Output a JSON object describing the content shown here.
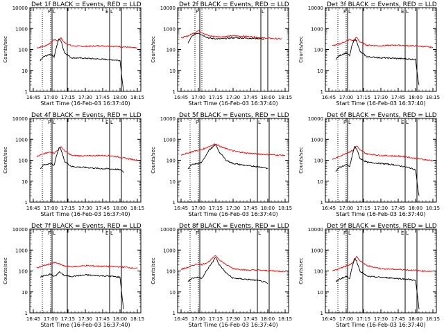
{
  "chart_data": [
    {
      "type": "line",
      "title": "Det 1f BLACK = Events, RED = LLD",
      "xlabel": "Start Time (16-Feb-03 16:37:40)",
      "ylabel": "Counts/sec",
      "yscale": "log",
      "ylim": [
        1,
        10000
      ],
      "xlim": [
        16.7,
        18.3
      ],
      "x_ticks": [
        "16:45",
        "17:00",
        "17:15",
        "17:30",
        "17:45",
        "18:00",
        "18:15"
      ],
      "y_ticks": [
        "1",
        "10",
        "100",
        "1000",
        "10000"
      ],
      "markers": {
        "dotted": [
          16.88,
          17.0
        ],
        "solid": [
          17.02,
          17.24,
          17.85,
          18.02
        ],
        "labels": [
          "F",
          "L",
          "E",
          "L"
        ]
      },
      "series": [
        {
          "color": "#ff0000",
          "x": [
            16.8,
            16.9,
            17.0,
            17.05,
            17.1,
            17.15,
            17.2,
            17.3,
            17.5,
            17.7,
            17.85,
            17.95,
            18.1,
            18.25
          ],
          "y": [
            120,
            140,
            200,
            300,
            260,
            350,
            210,
            150,
            140,
            150,
            145,
            140,
            130,
            115
          ]
        },
        {
          "color": "#000000",
          "x": [
            16.85,
            16.9,
            17.0,
            17.05,
            17.08,
            17.12,
            17.15,
            17.2,
            17.3,
            17.5,
            17.7,
            17.9,
            18.0,
            18.04,
            18.05
          ],
          "y": [
            30,
            45,
            60,
            45,
            120,
            330,
            250,
            70,
            40,
            38,
            35,
            32,
            30,
            2,
            1
          ]
        }
      ]
    },
    {
      "type": "line",
      "title": "Det 2f BLACK = Events, RED = LLD",
      "xlabel": "Start Time (16-Feb-03 16:37:40)",
      "ylabel": "Counts/sec",
      "yscale": "log",
      "ylim": [
        1,
        10000
      ],
      "xlim": [
        16.7,
        18.3
      ],
      "x_ticks": [
        "16:45",
        "17:00",
        "17:15",
        "17:30",
        "17:45",
        "18:00",
        "18:15"
      ],
      "y_ticks": [
        "1",
        "10",
        "100",
        "1000",
        "10000"
      ],
      "markers": {
        "dotted": [
          16.95,
          17.05
        ],
        "solid": [
          17.02,
          17.9,
          18.0
        ],
        "labels": [
          "F",
          "L"
        ]
      },
      "series": [
        {
          "color": "#ff0000",
          "x": [
            16.75,
            16.85,
            16.95,
            17.0,
            17.05,
            17.15,
            17.3,
            17.5,
            17.65,
            17.8,
            17.95,
            18.2
          ],
          "y": [
            350,
            450,
            650,
            800,
            650,
            450,
            400,
            450,
            430,
            400,
            350,
            320
          ]
        },
        {
          "color": "#000000",
          "x": [
            16.85,
            16.9,
            16.95,
            17.0,
            17.05,
            17.15,
            17.3,
            17.5,
            17.65,
            17.8,
            17.9,
            17.95
          ],
          "y": [
            200,
            400,
            550,
            620,
            500,
            350,
            320,
            360,
            350,
            340,
            330,
            300
          ]
        }
      ]
    },
    {
      "type": "line",
      "title": "Det 3f BLACK = Events, RED = LLD",
      "xlabel": "Start Time (16-Feb-03 16:37:40)",
      "ylabel": "Counts/sec",
      "yscale": "log",
      "ylim": [
        1,
        10000
      ],
      "xlim": [
        16.7,
        18.3
      ],
      "x_ticks": [
        "16:45",
        "17:00",
        "17:15",
        "17:30",
        "17:45",
        "18:00",
        "18:15"
      ],
      "y_ticks": [
        "1",
        "10",
        "100",
        "1000",
        "10000"
      ],
      "markers": {
        "dotted": [
          16.88,
          17.0
        ],
        "solid": [
          17.02,
          17.24,
          17.85,
          18.02
        ],
        "labels": [
          "F",
          "L",
          "E",
          "L"
        ]
      },
      "series": [
        {
          "color": "#ff0000",
          "x": [
            16.8,
            16.9,
            17.0,
            17.05,
            17.1,
            17.15,
            17.2,
            17.3,
            17.5,
            17.7,
            17.85,
            17.95,
            18.1,
            18.25
          ],
          "y": [
            150,
            180,
            250,
            300,
            260,
            380,
            230,
            160,
            150,
            160,
            155,
            150,
            140,
            125
          ]
        },
        {
          "color": "#000000",
          "x": [
            16.85,
            16.9,
            17.0,
            17.05,
            17.08,
            17.12,
            17.15,
            17.2,
            17.3,
            17.5,
            17.7,
            17.9,
            18.0,
            18.04,
            18.05
          ],
          "y": [
            35,
            50,
            70,
            50,
            140,
            300,
            260,
            80,
            45,
            40,
            38,
            35,
            33,
            3,
            2
          ]
        }
      ]
    },
    {
      "type": "line",
      "title": "Det 4f BLACK = Events, RED = LLD",
      "xlabel": "Start Time (16-Feb-03 16:37:40)",
      "ylabel": "Counts/sec",
      "yscale": "log",
      "ylim": [
        1,
        10000
      ],
      "xlim": [
        16.7,
        18.3
      ],
      "x_ticks": [
        "16:45",
        "17:00",
        "17:15",
        "17:30",
        "17:45",
        "18:00",
        "18:15"
      ],
      "y_ticks": [
        "1",
        "10",
        "100",
        "1000",
        "10000"
      ],
      "markers": {
        "dotted": [
          16.88,
          17.0
        ],
        "solid": [
          17.02,
          17.24,
          17.85,
          18.02
        ],
        "labels": [
          "F",
          "L",
          "E",
          "L"
        ]
      },
      "series": [
        {
          "color": "#ff0000",
          "x": [
            16.8,
            16.9,
            17.0,
            17.05,
            17.1,
            17.15,
            17.2,
            17.3,
            17.5,
            17.7,
            17.85,
            17.95,
            18.1,
            18.25
          ],
          "y": [
            150,
            200,
            250,
            220,
            300,
            450,
            280,
            170,
            160,
            170,
            165,
            150,
            120,
            100
          ]
        },
        {
          "color": "#000000",
          "x": [
            16.85,
            16.9,
            17.0,
            17.05,
            17.08,
            17.12,
            17.15,
            17.2,
            17.3,
            17.5,
            17.7,
            17.9,
            18.0,
            18.04,
            18.05
          ],
          "y": [
            40,
            60,
            70,
            55,
            150,
            400,
            330,
            90,
            50,
            45,
            40,
            38,
            35,
            30,
            25
          ]
        }
      ]
    },
    {
      "type": "line",
      "title": "Det 5f BLACK = Events, RED = LLD",
      "xlabel": "Start Time (16-Feb-03 16:37:40)",
      "ylabel": "Counts/sec",
      "yscale": "log",
      "ylim": [
        1,
        10000
      ],
      "xlim": [
        16.7,
        18.3
      ],
      "x_ticks": [
        "16:45",
        "17:00",
        "17:15",
        "17:30",
        "17:45",
        "18:00",
        "18:15"
      ],
      "y_ticks": [
        "1",
        "10",
        "100",
        "1000",
        "10000"
      ],
      "markers": {
        "dotted": [
          16.88,
          17.0
        ],
        "solid": [
          17.02,
          17.85,
          18.02
        ],
        "labels": [
          "F",
          "L"
        ]
      },
      "series": [
        {
          "color": "#ff0000",
          "x": [
            16.75,
            16.85,
            16.95,
            17.0,
            17.05,
            17.15,
            17.25,
            17.35,
            17.5,
            17.7,
            17.85,
            17.95,
            18.1,
            18.25
          ],
          "y": [
            180,
            220,
            280,
            300,
            320,
            450,
            600,
            400,
            280,
            220,
            200,
            190,
            180,
            170
          ]
        },
        {
          "color": "#000000",
          "x": [
            16.85,
            16.9,
            17.0,
            17.05,
            17.15,
            17.25,
            17.3,
            17.4,
            17.5,
            17.7,
            17.85,
            17.95,
            18.0
          ],
          "y": [
            40,
            60,
            70,
            80,
            300,
            550,
            250,
            100,
            70,
            55,
            50,
            45,
            40
          ]
        }
      ]
    },
    {
      "type": "line",
      "title": "Det 6f BLACK = Events, RED = LLD",
      "xlabel": "Start Time (16-Feb-03 16:37:40)",
      "ylabel": "Counts/sec",
      "yscale": "log",
      "ylim": [
        1,
        10000
      ],
      "xlim": [
        16.7,
        18.3
      ],
      "x_ticks": [
        "16:45",
        "17:00",
        "17:15",
        "17:30",
        "17:45",
        "18:00",
        "18:15"
      ],
      "y_ticks": [
        "1",
        "10",
        "100",
        "1000",
        "10000"
      ],
      "markers": {
        "dotted": [
          16.88,
          17.0
        ],
        "solid": [
          17.02,
          17.24,
          17.85,
          18.02
        ],
        "labels": [
          "F",
          "L",
          "E",
          "L"
        ]
      },
      "series": [
        {
          "color": "#ff0000",
          "x": [
            16.8,
            16.9,
            17.0,
            17.05,
            17.1,
            17.15,
            17.2,
            17.3,
            17.5,
            17.7,
            17.85,
            17.95,
            18.1,
            18.25
          ],
          "y": [
            110,
            150,
            220,
            250,
            300,
            500,
            300,
            200,
            170,
            160,
            150,
            130,
            110,
            95
          ]
        },
        {
          "color": "#000000",
          "x": [
            16.85,
            16.9,
            17.0,
            17.05,
            17.08,
            17.12,
            17.15,
            17.2,
            17.3,
            17.5,
            17.7,
            17.9,
            18.0,
            18.04,
            18.05
          ],
          "y": [
            30,
            45,
            60,
            50,
            130,
            450,
            350,
            120,
            80,
            70,
            60,
            45,
            35,
            3,
            2
          ]
        }
      ]
    },
    {
      "type": "line",
      "title": "Det 7f BLACK = Events, RED = LLD",
      "xlabel": "Start Time (16-Feb-03 16:37:40)",
      "ylabel": "Counts/sec",
      "yscale": "log",
      "ylim": [
        1,
        10000
      ],
      "xlim": [
        16.7,
        18.3
      ],
      "x_ticks": [
        "16:45",
        "17:00",
        "17:15",
        "17:30",
        "17:45",
        "18:00",
        "18:15"
      ],
      "y_ticks": [
        "1",
        "10",
        "100",
        "1000",
        "10000"
      ],
      "markers": {
        "dotted": [
          16.88,
          17.0
        ],
        "solid": [
          17.02,
          17.24,
          17.85,
          18.02
        ],
        "labels": [
          "F",
          "L",
          "E",
          "L"
        ]
      },
      "series": [
        {
          "color": "#ff0000",
          "x": [
            16.8,
            16.9,
            17.0,
            17.05,
            17.1,
            17.15,
            17.2,
            17.3,
            17.5,
            17.7,
            17.85,
            17.95,
            18.1,
            18.25
          ],
          "y": [
            140,
            180,
            220,
            250,
            230,
            200,
            170,
            160,
            180,
            170,
            165,
            160,
            150,
            130
          ]
        },
        {
          "color": "#000000",
          "x": [
            16.85,
            16.9,
            17.0,
            17.05,
            17.08,
            17.12,
            17.15,
            17.2,
            17.3,
            17.5,
            17.7,
            17.9,
            18.0,
            18.04,
            18.05
          ],
          "y": [
            50,
            60,
            70,
            55,
            60,
            90,
            80,
            60,
            55,
            65,
            60,
            55,
            50,
            3,
            1.5
          ]
        }
      ]
    },
    {
      "type": "line",
      "title": "Det 8f BLACK = Events, RED = LLD",
      "xlabel": "Start Time (16-Feb-03 16:37:40)",
      "ylabel": "Counts/sec",
      "yscale": "log",
      "ylim": [
        1,
        10000
      ],
      "xlim": [
        16.7,
        18.3
      ],
      "x_ticks": [
        "16:45",
        "17:00",
        "17:15",
        "17:30",
        "17:45",
        "18:00",
        "18:15"
      ],
      "y_ticks": [
        "1",
        "10",
        "100",
        "1000",
        "10000"
      ],
      "markers": {
        "dotted": [
          16.88,
          17.0
        ],
        "solid": [
          17.02,
          17.85,
          18.02
        ],
        "labels": [
          "F",
          "L"
        ]
      },
      "series": [
        {
          "color": "#ff0000",
          "x": [
            16.75,
            16.85,
            16.95,
            17.0,
            17.05,
            17.15,
            17.25,
            17.3,
            17.4,
            17.5,
            17.7,
            17.85,
            17.95,
            18.1,
            18.25
          ],
          "y": [
            120,
            150,
            200,
            220,
            200,
            280,
            550,
            350,
            200,
            130,
            110,
            110,
            105,
            100,
            95
          ]
        },
        {
          "color": "#000000",
          "x": [
            16.85,
            16.9,
            17.0,
            17.05,
            17.15,
            17.25,
            17.3,
            17.4,
            17.5,
            17.7,
            17.85,
            17.95,
            18.0
          ],
          "y": [
            30,
            45,
            50,
            45,
            150,
            450,
            200,
            80,
            45,
            40,
            35,
            30,
            25
          ]
        }
      ]
    },
    {
      "type": "line",
      "title": "Det 9f BLACK = Events, RED = LLD",
      "xlabel": "Start Time (16-Feb-03 16:37:40)",
      "ylabel": "Counts/sec",
      "yscale": "log",
      "ylim": [
        1,
        10000
      ],
      "xlim": [
        16.7,
        18.3
      ],
      "x_ticks": [
        "16:45",
        "17:00",
        "17:15",
        "17:30",
        "17:45",
        "18:00",
        "18:15"
      ],
      "y_ticks": [
        "1",
        "10",
        "100",
        "1000",
        "10000"
      ],
      "markers": {
        "dotted": [
          16.88,
          17.0
        ],
        "solid": [
          17.02,
          17.24,
          17.85,
          18.02
        ],
        "labels": [
          "F",
          "L",
          "E",
          "L"
        ]
      },
      "series": [
        {
          "color": "#ff0000",
          "x": [
            16.8,
            16.9,
            17.0,
            17.05,
            17.1,
            17.15,
            17.2,
            17.3,
            17.5,
            17.7,
            17.85,
            17.95,
            18.1,
            18.25
          ],
          "y": [
            100,
            130,
            180,
            200,
            250,
            500,
            300,
            180,
            130,
            120,
            115,
            110,
            100,
            95
          ]
        },
        {
          "color": "#000000",
          "x": [
            16.85,
            16.9,
            17.0,
            17.05,
            17.08,
            17.12,
            17.15,
            17.2,
            17.3,
            17.5,
            17.7,
            17.9,
            18.0,
            18.04,
            18.05
          ],
          "y": [
            30,
            40,
            55,
            45,
            120,
            420,
            300,
            100,
            55,
            50,
            45,
            40,
            35,
            3,
            1.5
          ]
        }
      ]
    }
  ]
}
